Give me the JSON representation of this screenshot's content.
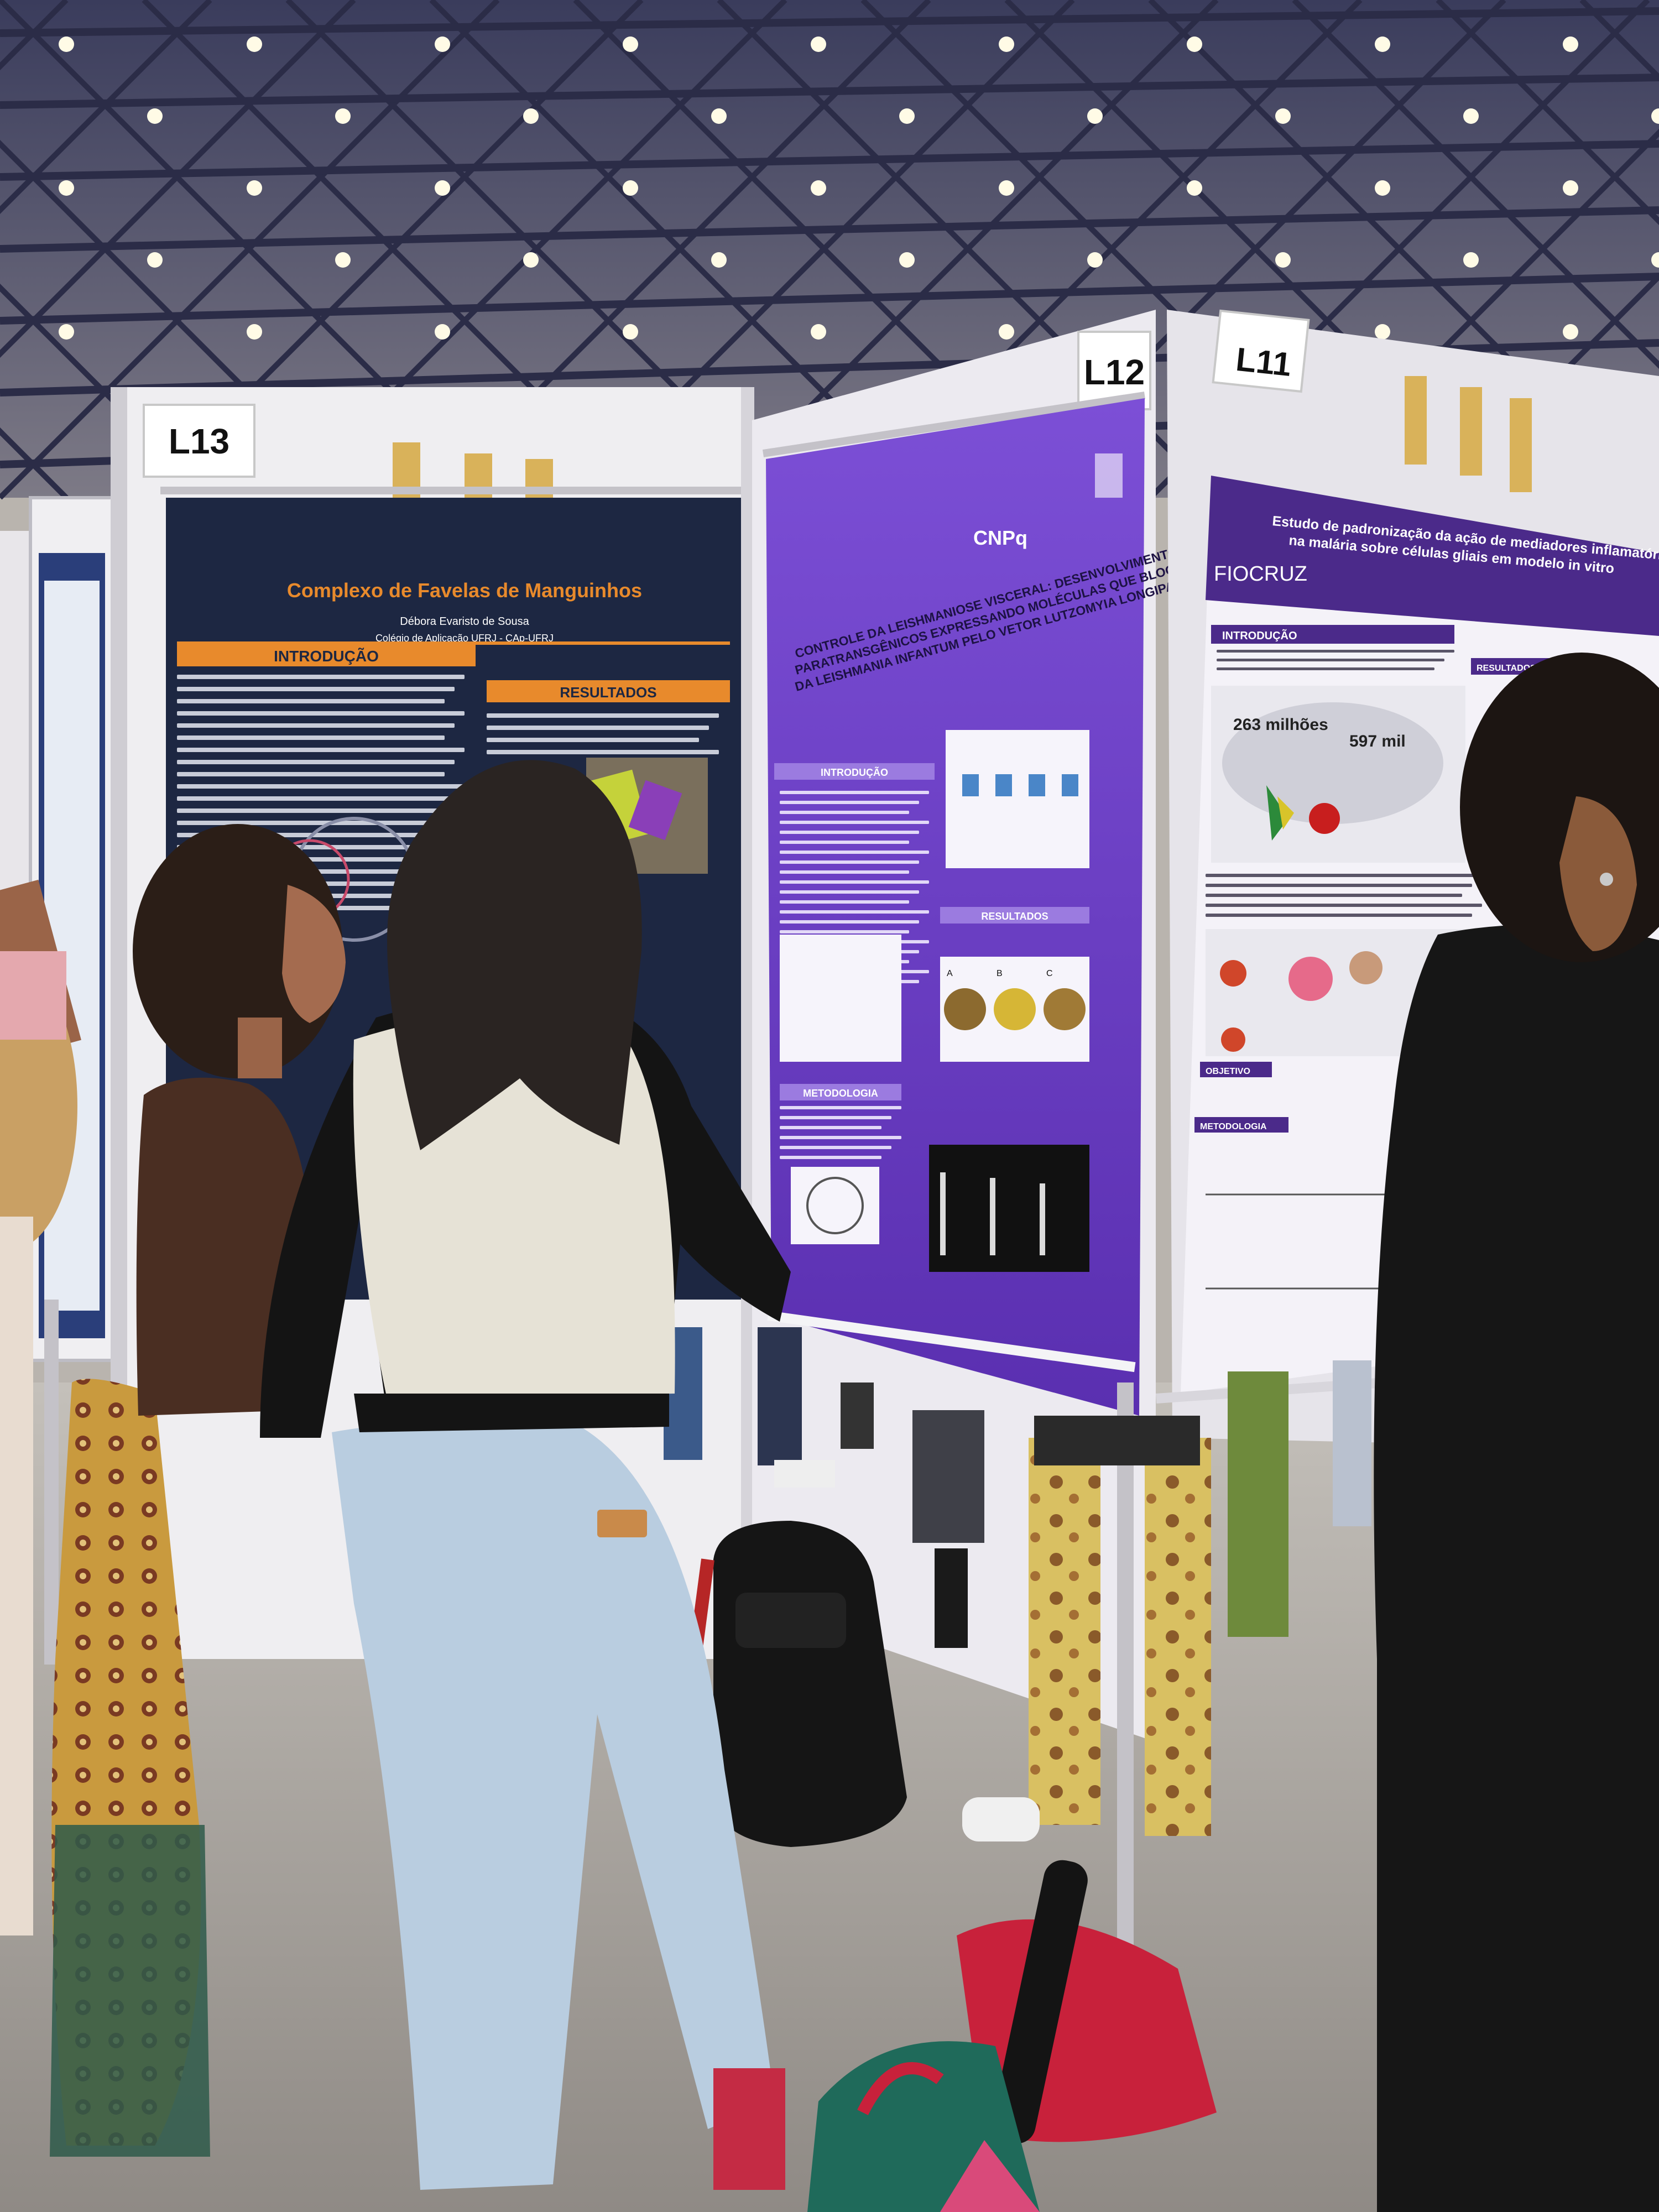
{
  "booth_labels": {
    "l13": "L13",
    "l12": "L12",
    "l11": "L11"
  },
  "poster_l13": {
    "title_line": "Complexo de Favelas de Manguinhos",
    "author": "Débora Evaristo de Sousa",
    "institution": "Colégio de Aplicação UFRJ - CAp-UFRJ",
    "sections": {
      "intro": "INTRODUÇÃO",
      "results": "RESULTADOS"
    }
  },
  "poster_l12": {
    "funder": "CNPq",
    "title_lines": [
      "CONTROLE DA LEISHMANIOSE VISCERAL: DESENVOLVIMENTO DE FLEBOTOMÍNEOS",
      "PARATRANSGÊNICOS EXPRESSANDO MOLÉCULAS QUE BLOQUEIAM A TRANSMISSÃO",
      "DA LEISHMANIA INFANTUM PELO VETOR LUTZOMYIA LONGIPALPIS"
    ],
    "sections": {
      "intro": "INTRODUÇÃO",
      "results": "RESULTADOS",
      "method": "METODOLOGIA"
    },
    "plate_letters": [
      "A",
      "B",
      "C"
    ]
  },
  "poster_l11": {
    "logo": "FIOCRUZ",
    "title_lines": [
      "Estudo de padronização da ação de mediadores inflamatórios presentes",
      "na malária sobre células gliais em modelo in vitro"
    ],
    "sections": {
      "intro": "INTRODUÇÃO",
      "results": "RESULTADOS",
      "objective": "OBJETIVO",
      "method": "METODOLOGIA"
    },
    "stat_1": "263 milhões",
    "stat_2": "597 mil"
  },
  "colors": {
    "ceiling": "#2e2f48",
    "truss": "#3c3f6a",
    "poster_l12": "#6c3fc4",
    "poster_l11": "#4b2a8a",
    "poster_l13": "#1d2742",
    "accent_orange": "#e88a2c",
    "floor": "#a7a29c"
  }
}
